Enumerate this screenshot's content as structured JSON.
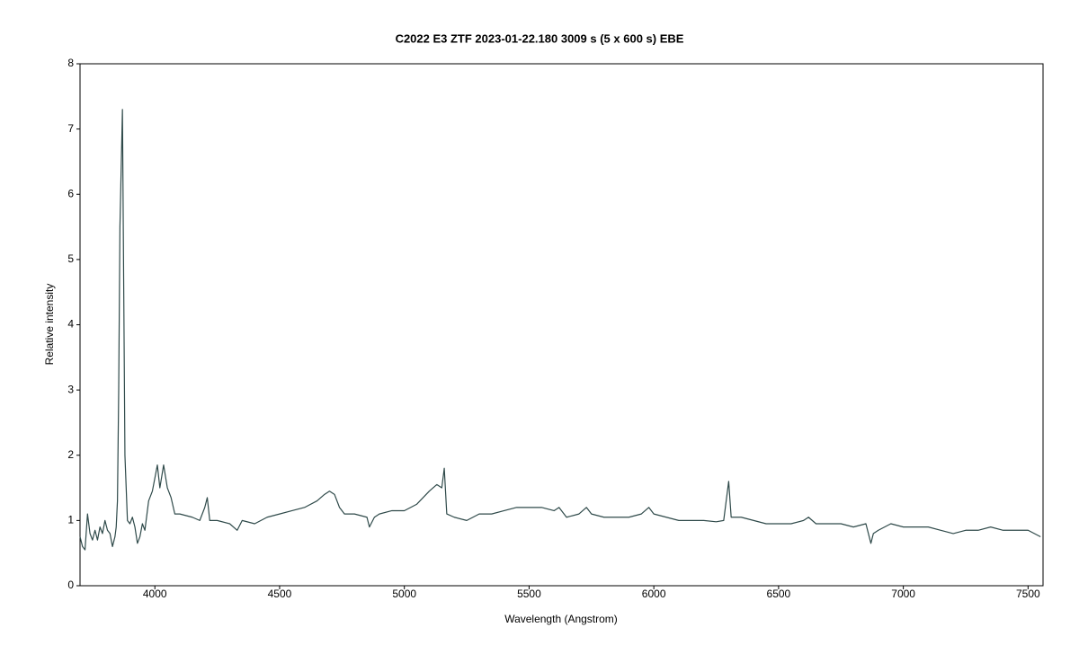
{
  "chart_data": {
    "type": "line",
    "title": "C2022 E3 ZTF   2023-01-22.180   3009 s (5 x 600 s)   EBE",
    "xlabel": "Wavelength (Angstrom)",
    "ylabel": "Relative intensity",
    "xlim": [
      3700,
      7560
    ],
    "ylim": [
      0,
      8
    ],
    "xticks": [
      4000,
      4500,
      5000,
      5500,
      6000,
      6500,
      7000,
      7500
    ],
    "yticks": [
      0,
      1,
      2,
      3,
      4,
      5,
      6,
      7,
      8
    ],
    "series": [
      {
        "color": "#2f4a4a",
        "x": [
          3700,
          3710,
          3720,
          3730,
          3740,
          3750,
          3760,
          3770,
          3780,
          3790,
          3800,
          3810,
          3820,
          3830,
          3840,
          3845,
          3850,
          3855,
          3860,
          3870,
          3880,
          3890,
          3900,
          3910,
          3920,
          3930,
          3940,
          3950,
          3960,
          3975,
          3990,
          4010,
          4020,
          4035,
          4050,
          4065,
          4080,
          4100,
          4150,
          4180,
          4200,
          4210,
          4220,
          4250,
          4300,
          4330,
          4350,
          4400,
          4450,
          4500,
          4550,
          4600,
          4650,
          4680,
          4700,
          4720,
          4740,
          4760,
          4800,
          4850,
          4860,
          4880,
          4900,
          4950,
          5000,
          5050,
          5100,
          5130,
          5150,
          5160,
          5170,
          5200,
          5250,
          5300,
          5350,
          5400,
          5450,
          5500,
          5550,
          5600,
          5620,
          5650,
          5700,
          5730,
          5750,
          5800,
          5850,
          5900,
          5950,
          5980,
          6000,
          6050,
          6100,
          6150,
          6200,
          6250,
          6280,
          6300,
          6310,
          6350,
          6400,
          6450,
          6500,
          6550,
          6600,
          6620,
          6650,
          6700,
          6750,
          6800,
          6850,
          6870,
          6880,
          6900,
          6950,
          7000,
          7050,
          7100,
          7150,
          7200,
          7250,
          7300,
          7350,
          7400,
          7450,
          7500,
          7550
        ],
        "values": [
          0.75,
          0.6,
          0.55,
          1.1,
          0.8,
          0.7,
          0.85,
          0.7,
          0.9,
          0.8,
          1.0,
          0.85,
          0.8,
          0.6,
          0.75,
          0.9,
          1.3,
          3.0,
          5.5,
          7.3,
          2.0,
          1.0,
          0.95,
          1.05,
          0.9,
          0.65,
          0.75,
          0.95,
          0.85,
          1.3,
          1.45,
          1.85,
          1.5,
          1.85,
          1.5,
          1.35,
          1.1,
          1.1,
          1.05,
          1.0,
          1.2,
          1.35,
          1.0,
          1.0,
          0.95,
          0.85,
          1.0,
          0.95,
          1.05,
          1.1,
          1.15,
          1.2,
          1.3,
          1.4,
          1.45,
          1.4,
          1.2,
          1.1,
          1.1,
          1.05,
          0.9,
          1.05,
          1.1,
          1.15,
          1.15,
          1.25,
          1.45,
          1.55,
          1.5,
          1.8,
          1.1,
          1.05,
          1.0,
          1.1,
          1.1,
          1.15,
          1.2,
          1.2,
          1.2,
          1.15,
          1.2,
          1.05,
          1.1,
          1.2,
          1.1,
          1.05,
          1.05,
          1.05,
          1.1,
          1.2,
          1.1,
          1.05,
          1.0,
          1.0,
          1.0,
          0.98,
          1.0,
          1.6,
          1.05,
          1.05,
          1.0,
          0.95,
          0.95,
          0.95,
          1.0,
          1.05,
          0.95,
          0.95,
          0.95,
          0.9,
          0.95,
          0.65,
          0.8,
          0.85,
          0.95,
          0.9,
          0.9,
          0.9,
          0.85,
          0.8,
          0.85,
          0.85,
          0.9,
          0.85,
          0.85,
          0.85,
          0.75
        ]
      }
    ]
  }
}
